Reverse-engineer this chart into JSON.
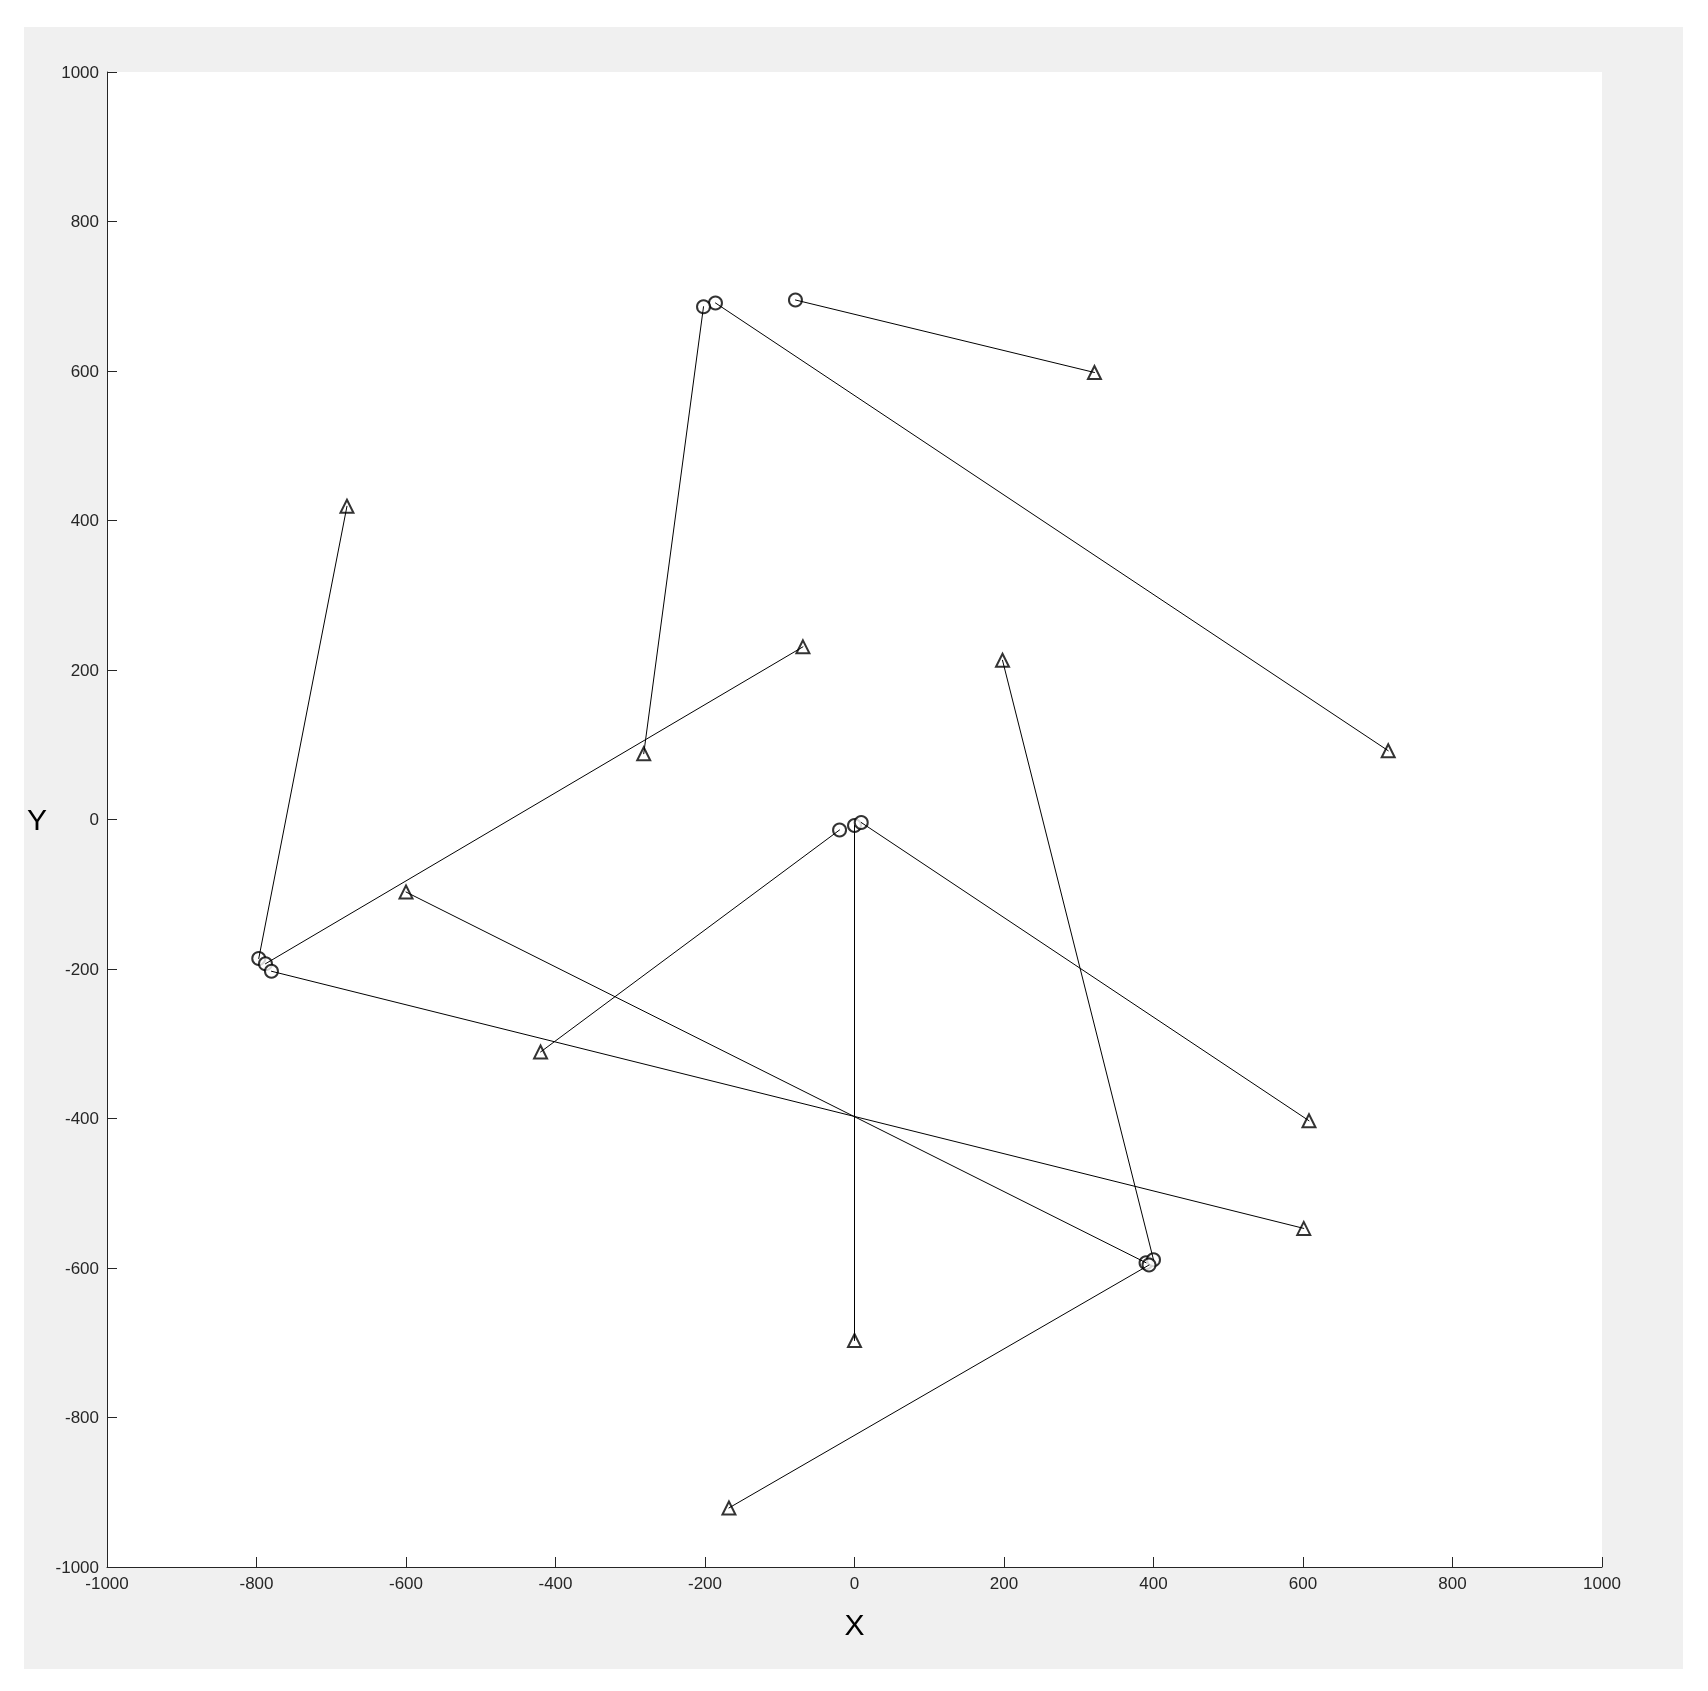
{
  "chart_data": {
    "type": "line",
    "xlabel": "X",
    "ylabel": "Y",
    "xlim": [
      -1000,
      1000
    ],
    "ylim": [
      -1000,
      1000
    ],
    "xticks": [
      -1000,
      -800,
      -600,
      -400,
      -200,
      0,
      200,
      400,
      600,
      800,
      1000
    ],
    "yticks": [
      -1000,
      -800,
      -600,
      -400,
      -200,
      0,
      200,
      400,
      600,
      800,
      1000
    ],
    "grid": false,
    "marker": "none",
    "line_style": "solid",
    "series": [
      {
        "color": "#000000",
        "x": [
          -79,
          321
        ],
        "values": [
          695,
          598
        ]
      },
      {
        "color": "#000000",
        "x": [
          -186,
          714
        ],
        "values": [
          691,
          92
        ]
      },
      {
        "color": "#000000",
        "x": [
          -202,
          -282
        ],
        "values": [
          686,
          88
        ]
      },
      {
        "color": "#000000",
        "x": [
          -797,
          -679
        ],
        "values": [
          -186,
          419
        ]
      },
      {
        "color": "#000000",
        "x": [
          -788,
          -69
        ],
        "values": [
          -193,
          231
        ]
      },
      {
        "color": "#000000",
        "x": [
          -780,
          601
        ],
        "values": [
          -203,
          -547
        ]
      },
      {
        "color": "#000000",
        "x": [
          -20,
          -420
        ],
        "values": [
          -14,
          -311
        ]
      },
      {
        "color": "#000000",
        "x": [
          0,
          0
        ],
        "values": [
          -8,
          -697
        ]
      },
      {
        "color": "#000000",
        "x": [
          9,
          608
        ],
        "values": [
          -4,
          -403
        ]
      },
      {
        "color": "#000000",
        "x": [
          390,
          -600
        ],
        "values": [
          -593,
          -97
        ]
      },
      {
        "color": "#000000",
        "x": [
          400,
          198
        ],
        "values": [
          -589,
          213
        ]
      },
      {
        "color": "#000000",
        "x": [
          394,
          -168
        ],
        "values": [
          -596,
          -921
        ]
      },
      {
        "type": "scatter",
        "marker": "circle",
        "color": "#000000",
        "x": [
          -79,
          -186,
          -202,
          -797,
          -788,
          -780,
          -20,
          0,
          9,
          390,
          400,
          394
        ],
        "values": [
          695,
          691,
          686,
          -186,
          -193,
          -203,
          -14,
          -8,
          -4,
          -593,
          -589,
          -596
        ]
      },
      {
        "type": "scatter",
        "marker": "triangle",
        "color": "#000000",
        "x": [
          321,
          714,
          -282,
          -679,
          -69,
          601,
          -420,
          0,
          608,
          -600,
          198,
          -168
        ],
        "values": [
          598,
          92,
          88,
          419,
          231,
          -547,
          -311,
          -697,
          -403,
          -97,
          213,
          -921
        ]
      }
    ]
  }
}
